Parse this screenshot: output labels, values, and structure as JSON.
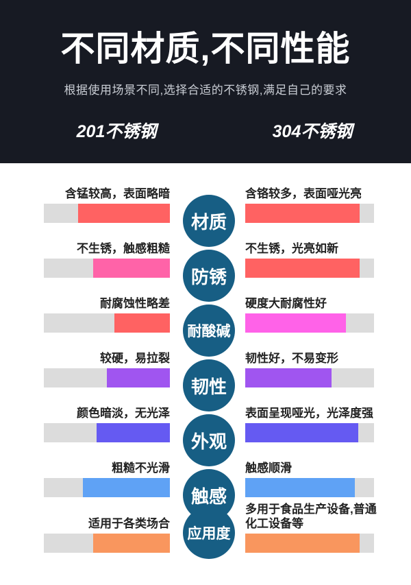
{
  "header": {
    "title": "不同材质,不同性能",
    "subtitle": "根据使用场景不同,选择合适的不锈钢,满足自己的要求",
    "column_left": "201不锈钢",
    "column_right": "304不锈钢"
  },
  "colors": {
    "header_bg": "#171a23",
    "circle": "#175e84",
    "track": "#dcdcdc",
    "label_text": "#222222"
  },
  "rows": [
    {
      "property": "材质",
      "left": {
        "text": "含锰较高，表面略暗",
        "fill_pct": 73,
        "color": "#ff6262"
      },
      "right": {
        "text": "含铬较多，表面哑光亮",
        "fill_pct": 89,
        "color": "#ff6262"
      }
    },
    {
      "property": "防锈",
      "left": {
        "text": "不生锈，触感粗糙",
        "fill_pct": 61,
        "color": "#ff63a8"
      },
      "right": {
        "text": "不生锈，光亮如新",
        "fill_pct": 89,
        "color": "#ff6262"
      }
    },
    {
      "property": "耐酸碱",
      "left": {
        "text": "耐腐蚀性略差",
        "fill_pct": 44,
        "color": "#ff6262"
      },
      "right": {
        "text": "硬度大耐腐性好",
        "fill_pct": 78,
        "color": "#ff62e8"
      }
    },
    {
      "property": "韧性",
      "left": {
        "text": "较硬，易拉裂",
        "fill_pct": 50,
        "color": "#a055f0"
      },
      "right": {
        "text": "韧性好，不易变形",
        "fill_pct": 67,
        "color": "#a055f0"
      }
    },
    {
      "property": "外观",
      "left": {
        "text": "颜色暗淡，无光泽",
        "fill_pct": 58,
        "color": "#655af2"
      },
      "right": {
        "text": "表面呈现哑光，光泽度强",
        "fill_pct": 88,
        "color": "#655af2"
      }
    },
    {
      "property": "触感",
      "left": {
        "text": "粗糙不光滑",
        "fill_pct": 69,
        "color": "#5fa2f5"
      },
      "right": {
        "text": "触感顺滑",
        "fill_pct": 85,
        "color": "#5fa2f5"
      }
    },
    {
      "property": "应用度",
      "left": {
        "text": "适用于各类场合",
        "fill_pct": 61,
        "color": "#f9965e"
      },
      "right": {
        "text": "多用于食品生产设备,普通化工设备等",
        "fill_pct": 89,
        "color": "#f9965e"
      }
    }
  ]
}
